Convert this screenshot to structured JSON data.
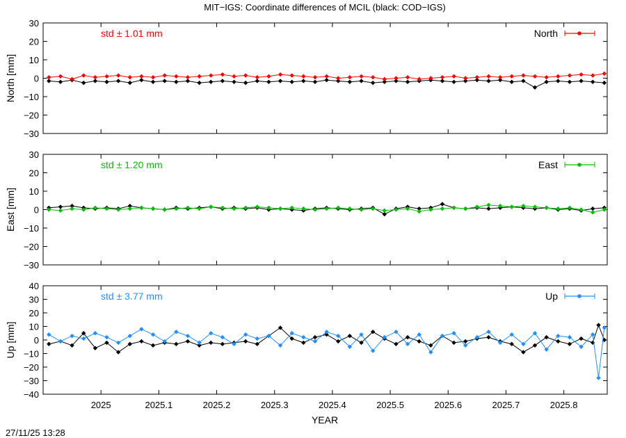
{
  "title": "MIT−IGS: Coordinate differences of MCIL (black: COD−IGS)",
  "timestamp": "27/11/25 13:28",
  "xlabel": "YEAR",
  "colors": {
    "north": "#ff0000",
    "east": "#00c000",
    "up": "#1e90ff",
    "reference": "#000000",
    "frame": "#000000"
  },
  "chart_data": [
    {
      "type": "line",
      "panel": "north",
      "ylabel": "North [mm]",
      "legend": "North",
      "legend_placement": "top-right",
      "std_label": "std ± 1.01 mm",
      "ylim": [
        -30,
        30
      ],
      "yticks": [
        -30,
        -20,
        -10,
        0,
        10,
        20,
        30
      ],
      "ytick_labels": [
        "−30",
        "−20",
        "−10",
        "0",
        "10",
        "20",
        "30"
      ],
      "xlim": [
        2024.9,
        2025.875
      ],
      "grid": false,
      "series": [
        {
          "x": [
            2024.91,
            2024.93,
            2024.95,
            2024.97,
            2024.99,
            2025.01,
            2025.03,
            2025.05,
            2025.07,
            2025.09,
            2025.11,
            2025.13,
            2025.15,
            2025.17,
            2025.19,
            2025.21,
            2025.23,
            2025.25,
            2025.27,
            2025.29,
            2025.31,
            2025.33,
            2025.35,
            2025.37,
            2025.39,
            2025.41,
            2025.43,
            2025.45,
            2025.47,
            2025.49,
            2025.51,
            2025.53,
            2025.55,
            2025.57,
            2025.59,
            2025.61,
            2025.63,
            2025.65,
            2025.67,
            2025.69,
            2025.71,
            2025.73,
            2025.75,
            2025.77,
            2025.79,
            2025.81,
            2025.83,
            2025.85,
            2025.87
          ],
          "values": [
            0.5,
            1.0,
            -0.5,
            1.5,
            0.5,
            1.0,
            1.5,
            0.5,
            1.0,
            0.5,
            1.5,
            1.0,
            0.5,
            1.0,
            1.5,
            2.0,
            1.0,
            1.5,
            0.5,
            1.0,
            2.0,
            1.5,
            1.0,
            0.5,
            1.0,
            0.0,
            0.5,
            1.0,
            0.5,
            -0.5,
            0.0,
            0.5,
            -0.5,
            0.0,
            0.5,
            1.0,
            0.0,
            0.5,
            1.0,
            0.5,
            1.0,
            1.5,
            1.0,
            0.5,
            1.0,
            1.5,
            2.0,
            1.5,
            2.5
          ]
        },
        {
          "name": "COD−IGS",
          "x": [
            2024.91,
            2024.93,
            2024.95,
            2024.97,
            2024.99,
            2025.01,
            2025.03,
            2025.05,
            2025.07,
            2025.09,
            2025.11,
            2025.13,
            2025.15,
            2025.17,
            2025.19,
            2025.21,
            2025.23,
            2025.25,
            2025.27,
            2025.29,
            2025.31,
            2025.33,
            2025.35,
            2025.37,
            2025.39,
            2025.41,
            2025.43,
            2025.45,
            2025.47,
            2025.49,
            2025.51,
            2025.53,
            2025.55,
            2025.57,
            2025.59,
            2025.61,
            2025.63,
            2025.65,
            2025.67,
            2025.69,
            2025.71,
            2025.73,
            2025.75,
            2025.77,
            2025.79,
            2025.81,
            2025.83,
            2025.85,
            2025.87
          ],
          "values": [
            -1.5,
            -2.0,
            -1.0,
            -2.5,
            -1.5,
            -2.0,
            -1.5,
            -2.5,
            -1.0,
            -2.0,
            -1.5,
            -2.0,
            -1.5,
            -2.5,
            -2.0,
            -1.5,
            -2.0,
            -2.5,
            -1.5,
            -2.0,
            -1.5,
            -2.0,
            -1.5,
            -2.0,
            -1.0,
            -1.5,
            -2.0,
            -1.5,
            -2.5,
            -2.0,
            -1.5,
            -2.0,
            -1.5,
            -1.0,
            -1.5,
            -2.0,
            -1.5,
            -1.0,
            -1.5,
            -1.0,
            -2.0,
            -1.5,
            -5.0,
            -2.0,
            -1.5,
            -2.0,
            -1.5,
            -2.0,
            -2.5
          ]
        }
      ]
    },
    {
      "type": "line",
      "panel": "east",
      "ylabel": "East [mm]",
      "legend": "East",
      "legend_placement": "top-right",
      "std_label": "std ± 1.20 mm",
      "ylim": [
        -30,
        30
      ],
      "yticks": [
        -30,
        -20,
        -10,
        0,
        10,
        20,
        30
      ],
      "ytick_labels": [
        "−30",
        "−20",
        "−10",
        "0",
        "10",
        "20",
        "30"
      ],
      "xlim": [
        2024.9,
        2025.875
      ],
      "grid": false,
      "series": [
        {
          "x": [
            2024.91,
            2024.93,
            2024.95,
            2024.97,
            2024.99,
            2025.01,
            2025.03,
            2025.05,
            2025.07,
            2025.09,
            2025.11,
            2025.13,
            2025.15,
            2025.17,
            2025.19,
            2025.21,
            2025.23,
            2025.25,
            2025.27,
            2025.29,
            2025.31,
            2025.33,
            2025.35,
            2025.37,
            2025.39,
            2025.41,
            2025.43,
            2025.45,
            2025.47,
            2025.49,
            2025.51,
            2025.53,
            2025.55,
            2025.57,
            2025.59,
            2025.61,
            2025.63,
            2025.65,
            2025.67,
            2025.69,
            2025.71,
            2025.73,
            2025.75,
            2025.77,
            2025.79,
            2025.81,
            2025.83,
            2025.85,
            2025.87
          ],
          "values": [
            0.0,
            -0.5,
            0.5,
            0.0,
            1.0,
            0.5,
            0.0,
            0.5,
            1.0,
            0.5,
            0.0,
            0.5,
            1.0,
            0.5,
            1.5,
            1.0,
            0.5,
            1.0,
            1.5,
            1.0,
            0.5,
            1.0,
            0.5,
            0.0,
            0.5,
            1.0,
            0.5,
            0.0,
            0.5,
            -0.5,
            0.0,
            0.5,
            -1.0,
            0.0,
            0.5,
            1.0,
            0.5,
            1.5,
            2.5,
            2.0,
            1.5,
            2.0,
            1.5,
            1.0,
            0.5,
            1.0,
            0.0,
            -1.5,
            0.0
          ]
        },
        {
          "name": "COD−IGS",
          "x": [
            2024.91,
            2024.93,
            2024.95,
            2024.97,
            2024.99,
            2025.01,
            2025.03,
            2025.05,
            2025.07,
            2025.09,
            2025.11,
            2025.13,
            2025.15,
            2025.17,
            2025.19,
            2025.21,
            2025.23,
            2025.25,
            2025.27,
            2025.29,
            2025.31,
            2025.33,
            2025.35,
            2025.37,
            2025.39,
            2025.41,
            2025.43,
            2025.45,
            2025.47,
            2025.49,
            2025.51,
            2025.53,
            2025.55,
            2025.57,
            2025.59,
            2025.61,
            2025.63,
            2025.65,
            2025.67,
            2025.69,
            2025.71,
            2025.73,
            2025.75,
            2025.77,
            2025.79,
            2025.81,
            2025.83,
            2025.85,
            2025.87
          ],
          "values": [
            1.0,
            1.5,
            2.0,
            1.0,
            0.5,
            1.0,
            0.5,
            2.0,
            1.0,
            0.5,
            0.0,
            1.0,
            0.5,
            1.0,
            1.5,
            0.5,
            1.0,
            0.5,
            1.0,
            0.0,
            0.5,
            0.0,
            -0.5,
            0.5,
            1.0,
            0.5,
            0.0,
            0.5,
            1.0,
            -2.5,
            0.5,
            1.5,
            0.5,
            1.0,
            3.0,
            1.0,
            0.5,
            1.0,
            0.5,
            1.0,
            1.5,
            1.0,
            0.5,
            1.0,
            0.0,
            0.5,
            -0.5,
            0.5,
            1.0
          ]
        }
      ]
    },
    {
      "type": "line",
      "panel": "up",
      "ylabel": "Up [mm]",
      "legend": "Up",
      "legend_placement": "top-right",
      "std_label": "std ± 3.77 mm",
      "ylim": [
        -40,
        40
      ],
      "yticks": [
        -40,
        -30,
        -20,
        -10,
        0,
        10,
        20,
        30,
        40
      ],
      "ytick_labels": [
        "−40",
        "−30",
        "−20",
        "−10",
        "0",
        "10",
        "20",
        "30",
        "40"
      ],
      "xlim": [
        2024.9,
        2025.875
      ],
      "xticks": [
        2025,
        2025.1,
        2025.2,
        2025.3,
        2025.4,
        2025.5,
        2025.6,
        2025.7,
        2025.8
      ],
      "xtick_labels": [
        "2025",
        "2025.1",
        "2025.2",
        "2025.3",
        "2025.4",
        "2025.5",
        "2025.6",
        "2025.7",
        "2025.8"
      ],
      "grid": false,
      "series": [
        {
          "x": [
            2024.91,
            2024.93,
            2024.95,
            2024.97,
            2024.99,
            2025.01,
            2025.03,
            2025.05,
            2025.07,
            2025.09,
            2025.11,
            2025.13,
            2025.15,
            2025.17,
            2025.19,
            2025.21,
            2025.23,
            2025.25,
            2025.27,
            2025.29,
            2025.31,
            2025.33,
            2025.35,
            2025.37,
            2025.39,
            2025.41,
            2025.43,
            2025.45,
            2025.47,
            2025.49,
            2025.51,
            2025.53,
            2025.55,
            2025.57,
            2025.59,
            2025.61,
            2025.63,
            2025.65,
            2025.67,
            2025.69,
            2025.71,
            2025.73,
            2025.75,
            2025.77,
            2025.79,
            2025.81,
            2025.83,
            2025.85,
            2025.86,
            2025.87
          ],
          "values": [
            4,
            -1,
            3,
            1,
            5,
            2,
            -2,
            3,
            8,
            4,
            -1,
            6,
            3,
            -2,
            5,
            2,
            -3,
            4,
            1,
            3,
            -4,
            5,
            2,
            -1,
            6,
            3,
            -5,
            4,
            -8,
            2,
            6,
            -3,
            4,
            -9,
            3,
            5,
            -4,
            2,
            6,
            -2,
            4,
            -3,
            5,
            -7,
            3,
            2,
            -5,
            4,
            -28,
            9
          ]
        },
        {
          "name": "COD−IGS",
          "x": [
            2024.91,
            2024.93,
            2024.95,
            2024.97,
            2024.99,
            2025.01,
            2025.03,
            2025.05,
            2025.07,
            2025.09,
            2025.11,
            2025.13,
            2025.15,
            2025.17,
            2025.19,
            2025.21,
            2025.23,
            2025.25,
            2025.27,
            2025.29,
            2025.31,
            2025.33,
            2025.35,
            2025.37,
            2025.39,
            2025.41,
            2025.43,
            2025.45,
            2025.47,
            2025.49,
            2025.51,
            2025.53,
            2025.55,
            2025.57,
            2025.59,
            2025.61,
            2025.63,
            2025.65,
            2025.67,
            2025.69,
            2025.71,
            2025.73,
            2025.75,
            2025.77,
            2025.79,
            2025.81,
            2025.83,
            2025.85,
            2025.86,
            2025.87
          ],
          "values": [
            -3,
            -1,
            -4,
            5,
            -6,
            -2,
            -9,
            -3,
            -1,
            -4,
            -2,
            -3,
            -1,
            -4,
            -2,
            -3,
            -2,
            -1,
            -3,
            3,
            9,
            1,
            -2,
            2,
            4,
            -1,
            3,
            -2,
            6,
            1,
            -3,
            2,
            -1,
            -4,
            3,
            -2,
            -1,
            1,
            2,
            -1,
            -3,
            -9,
            -4,
            2,
            -1,
            -3,
            1,
            -2,
            11,
            0
          ]
        }
      ]
    }
  ]
}
